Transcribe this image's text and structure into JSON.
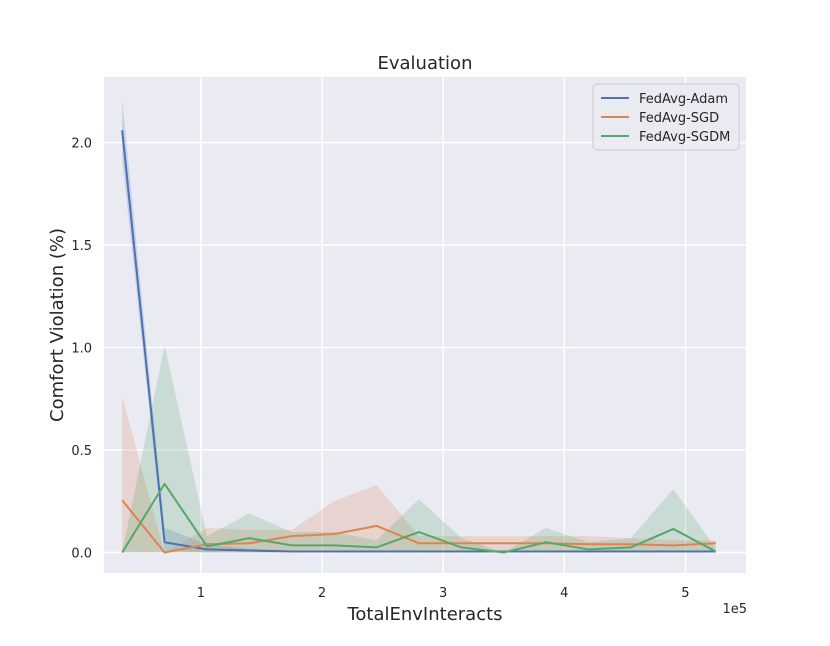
{
  "chart_data": {
    "type": "line",
    "title": "Evaluation",
    "xlabel": "TotalEnvInteracts",
    "ylabel": "Comfort Violation (%)",
    "x_offset_label": "1e5",
    "xlim": [
      0.2,
      5.5
    ],
    "ylim": [
      -0.1,
      2.32
    ],
    "x_ticks": [
      1,
      2,
      3,
      4,
      5
    ],
    "x_tick_labels": [
      "1",
      "2",
      "3",
      "4",
      "5"
    ],
    "y_ticks": [
      0.0,
      0.5,
      1.0,
      1.5,
      2.0
    ],
    "y_tick_labels": [
      "0.0",
      "0.5",
      "1.0",
      "1.5",
      "2.0"
    ],
    "grid": true,
    "legend_position": "top-right",
    "x": [
      0.35,
      0.7,
      1.05,
      1.4,
      1.75,
      2.1,
      2.45,
      2.8,
      3.15,
      3.5,
      3.85,
      4.2,
      4.55,
      4.9,
      5.25
    ],
    "series": [
      {
        "name": "FedAvg-Adam",
        "color": "#4c72b0",
        "values": [
          2.06,
          0.05,
          0.015,
          0.01,
          0.005,
          0.005,
          0.005,
          0.005,
          0.005,
          0.005,
          0.005,
          0.005,
          0.005,
          0.005,
          0.005
        ],
        "lower": [
          1.92,
          0.01,
          0.0,
          0.0,
          0.0,
          0.0,
          0.0,
          0.0,
          0.0,
          0.0,
          0.0,
          0.0,
          0.0,
          0.0,
          0.0
        ],
        "upper": [
          2.21,
          0.12,
          0.04,
          0.02,
          0.01,
          0.01,
          0.01,
          0.01,
          0.01,
          0.01,
          0.01,
          0.01,
          0.01,
          0.01,
          0.01
        ]
      },
      {
        "name": "FedAvg-SGD",
        "color": "#dd8452",
        "values": [
          0.255,
          0.0,
          0.04,
          0.045,
          0.08,
          0.09,
          0.13,
          0.045,
          0.045,
          0.045,
          0.045,
          0.04,
          0.04,
          0.035,
          0.045
        ],
        "lower": [
          0.0,
          0.0,
          0.0,
          0.0,
          0.0,
          0.0,
          0.0,
          0.01,
          0.01,
          0.01,
          0.01,
          0.01,
          0.01,
          0.01,
          0.01
        ],
        "upper": [
          0.76,
          0.0,
          0.12,
          0.11,
          0.11,
          0.25,
          0.33,
          0.08,
          0.08,
          0.08,
          0.08,
          0.08,
          0.07,
          0.06,
          0.06
        ]
      },
      {
        "name": "FedAvg-SGDM",
        "color": "#55a868",
        "values": [
          0.0,
          0.335,
          0.03,
          0.07,
          0.035,
          0.035,
          0.025,
          0.1,
          0.025,
          0.0,
          0.05,
          0.015,
          0.025,
          0.115,
          0.005
        ],
        "lower": [
          0.0,
          0.0,
          0.0,
          0.0,
          0.0,
          0.0,
          0.0,
          0.0,
          0.0,
          0.0,
          0.0,
          0.0,
          0.0,
          0.0,
          0.0
        ],
        "upper": [
          0.0,
          1.01,
          0.08,
          0.19,
          0.1,
          0.1,
          0.06,
          0.26,
          0.07,
          0.0,
          0.12,
          0.05,
          0.07,
          0.31,
          0.02
        ]
      }
    ]
  }
}
